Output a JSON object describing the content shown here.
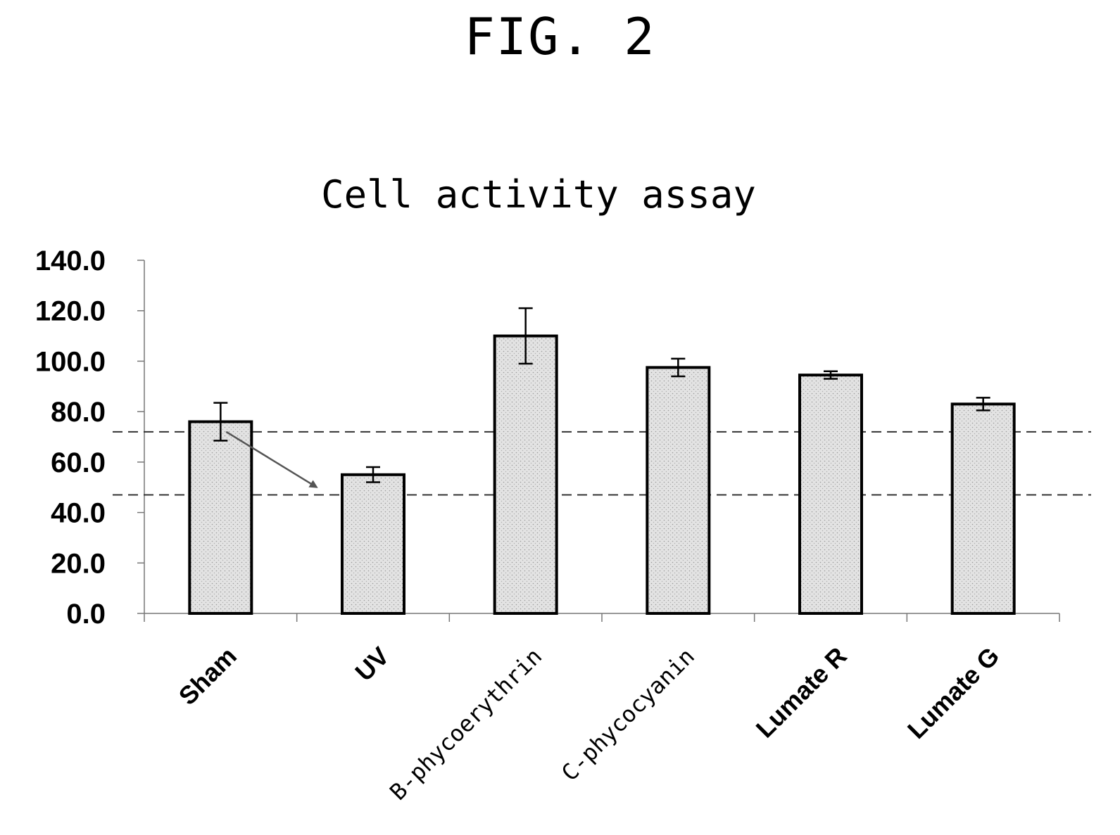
{
  "figure_label": "FIG. 2",
  "chart_data": {
    "type": "bar",
    "title": "Cell activity assay",
    "xlabel": "",
    "ylabel": "",
    "categories": [
      "Sham",
      "UV",
      "B-phycoerythrin",
      "C-phycocyanin",
      "Lumate R",
      "Lumate G"
    ],
    "values": [
      76.0,
      55.0,
      110.0,
      97.5,
      94.5,
      83.0
    ],
    "error": [
      7.5,
      3.0,
      11.0,
      3.5,
      1.5,
      2.5
    ],
    "ylim": [
      0,
      140
    ],
    "yticks": [
      "0.0",
      "20.0",
      "40.0",
      "60.0",
      "80.0",
      "100.0",
      "120.0",
      "140.0"
    ],
    "reference_lines": [
      72.0,
      47.0
    ],
    "annotation": "arrow from Sham to UV",
    "grid": false,
    "colors": {
      "bar_fill": "#d9d9d9",
      "bar_stroke": "#000000",
      "arrow": "#555555"
    }
  }
}
